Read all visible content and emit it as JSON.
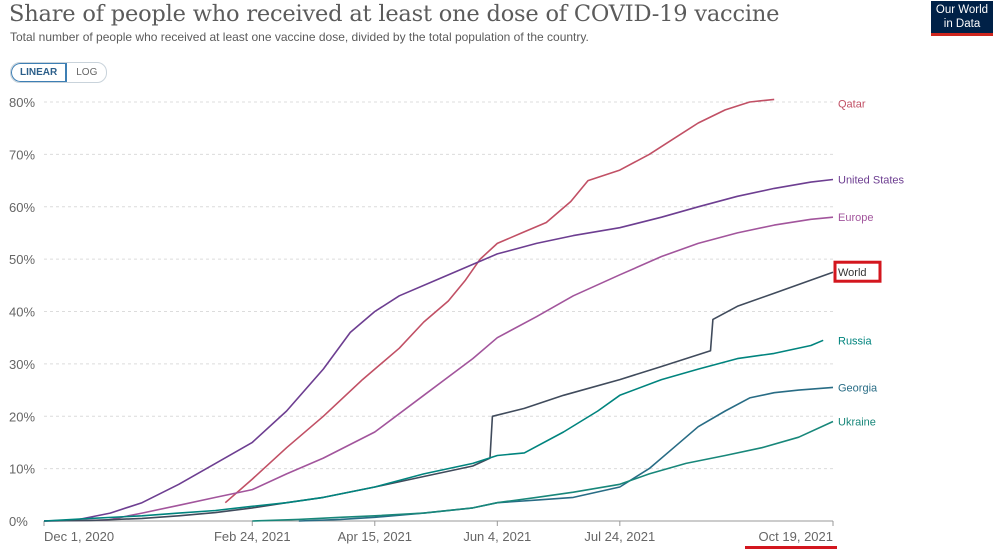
{
  "header": {
    "title": "Share of people who received at least one dose of COVID-19 vaccine",
    "subtitle": "Total number of people who received at least one vaccine dose, divided by the total population of the country.",
    "logo_line1": "Our World",
    "logo_line2": "in Data"
  },
  "scale_toggle": {
    "linear": "LINEAR",
    "log": "LOG",
    "selected": "LINEAR"
  },
  "colors": {
    "Qatar": "#c15065",
    "United States": "#6d3e91",
    "Europe": "#a2559c",
    "World": "#404b5c",
    "Russia": "#00847e",
    "Georgia": "#286c85",
    "Ukraine": "#18877a",
    "highlight": "#d3161e"
  },
  "chart_data": {
    "type": "line",
    "title": "Share of people who received at least one dose of COVID-19 vaccine",
    "subtitle": "Total number of people who received at least one vaccine dose, divided by the total population of the country.",
    "xlabel": "",
    "ylabel": "",
    "x_ticks": [
      "Dec 1, 2020",
      "Feb 24, 2021",
      "Apr 15, 2021",
      "Jun 4, 2021",
      "Jul 24, 2021",
      "Oct 19, 2021"
    ],
    "y_ticks": [
      "0%",
      "10%",
      "20%",
      "30%",
      "40%",
      "50%",
      "60%",
      "70%",
      "80%"
    ],
    "ylim": [
      0,
      80
    ],
    "xlim": [
      "2020-12-01",
      "2021-10-19"
    ],
    "grid": "horizontal-dashed",
    "legend": "inline-right",
    "highlighted_series": "World",
    "series": [
      {
        "name": "Qatar",
        "x": [
          "2021-02-13",
          "2021-02-24",
          "2021-03-10",
          "2021-03-25",
          "2021-04-10",
          "2021-04-25",
          "2021-05-05",
          "2021-05-15",
          "2021-05-22",
          "2021-05-28",
          "2021-06-04",
          "2021-06-14",
          "2021-06-24",
          "2021-07-04",
          "2021-07-11",
          "2021-07-24",
          "2021-08-05",
          "2021-08-15",
          "2021-08-25",
          "2021-09-05",
          "2021-09-15",
          "2021-09-25"
        ],
        "y": [
          3.5,
          8,
          14,
          20,
          27,
          33,
          38,
          42,
          46,
          50,
          53,
          55,
          57,
          61,
          65,
          67,
          70,
          73,
          76,
          78.5,
          80,
          80.5
        ]
      },
      {
        "name": "United States",
        "x": [
          "2020-12-01",
          "2020-12-14",
          "2020-12-28",
          "2021-01-10",
          "2021-01-25",
          "2021-02-09",
          "2021-02-24",
          "2021-03-10",
          "2021-03-25",
          "2021-04-05",
          "2021-04-15",
          "2021-04-25",
          "2021-05-10",
          "2021-05-25",
          "2021-06-04",
          "2021-06-20",
          "2021-07-05",
          "2021-07-24",
          "2021-08-10",
          "2021-08-25",
          "2021-09-10",
          "2021-09-25",
          "2021-10-10",
          "2021-10-19"
        ],
        "y": [
          0,
          0.2,
          1.5,
          3.5,
          7,
          11,
          15,
          21,
          29,
          36,
          40,
          43,
          46,
          49,
          51,
          53,
          54.5,
          56,
          58,
          60,
          62,
          63.5,
          64.7,
          65.2
        ]
      },
      {
        "name": "Europe",
        "x": [
          "2020-12-01",
          "2020-12-27",
          "2021-01-10",
          "2021-01-25",
          "2021-02-09",
          "2021-02-24",
          "2021-03-10",
          "2021-03-25",
          "2021-04-15",
          "2021-05-05",
          "2021-05-25",
          "2021-06-04",
          "2021-06-20",
          "2021-07-05",
          "2021-07-24",
          "2021-08-10",
          "2021-08-25",
          "2021-09-10",
          "2021-09-25",
          "2021-10-10",
          "2021-10-19"
        ],
        "y": [
          0,
          0.2,
          1.5,
          3,
          4.5,
          6,
          9,
          12,
          17,
          24,
          31,
          35,
          39,
          43,
          47,
          50.5,
          53,
          55,
          56.5,
          57.6,
          58
        ]
      },
      {
        "name": "World",
        "x": [
          "2020-12-01",
          "2020-12-20",
          "2021-01-10",
          "2021-01-25",
          "2021-02-09",
          "2021-02-24",
          "2021-03-10",
          "2021-03-25",
          "2021-04-15",
          "2021-05-05",
          "2021-05-25",
          "2021-06-01",
          "2021-06-02",
          "2021-06-15",
          "2021-07-01",
          "2021-07-24",
          "2021-08-10",
          "2021-08-30",
          "2021-08-31",
          "2021-09-10",
          "2021-09-25",
          "2021-10-10",
          "2021-10-19"
        ],
        "y": [
          0,
          0.1,
          0.5,
          1,
          1.6,
          2.5,
          3.5,
          4.5,
          6.5,
          8.5,
          10.5,
          12,
          20,
          21.5,
          24,
          27,
          29.5,
          32.5,
          38.5,
          41,
          43.5,
          46,
          47.5
        ]
      },
      {
        "name": "Russia",
        "x": [
          "2020-12-01",
          "2020-12-20",
          "2021-01-10",
          "2021-01-25",
          "2021-02-09",
          "2021-02-24",
          "2021-03-10",
          "2021-03-25",
          "2021-04-15",
          "2021-05-05",
          "2021-05-25",
          "2021-06-04",
          "2021-06-15",
          "2021-07-01",
          "2021-07-15",
          "2021-07-24",
          "2021-08-10",
          "2021-08-25",
          "2021-09-10",
          "2021-09-25",
          "2021-10-10",
          "2021-10-15"
        ],
        "y": [
          0,
          0.5,
          1,
          1.5,
          2,
          2.8,
          3.5,
          4.5,
          6.5,
          9,
          11,
          12.5,
          13,
          17,
          21,
          24,
          27,
          29,
          31,
          32,
          33.5,
          34.5
        ]
      },
      {
        "name": "Georgia",
        "x": [
          "2021-03-15",
          "2021-04-01",
          "2021-04-15",
          "2021-05-05",
          "2021-05-25",
          "2021-06-04",
          "2021-06-20",
          "2021-07-05",
          "2021-07-24",
          "2021-08-05",
          "2021-08-15",
          "2021-08-25",
          "2021-09-05",
          "2021-09-15",
          "2021-09-25",
          "2021-10-05",
          "2021-10-19"
        ],
        "y": [
          0,
          0.3,
          0.7,
          1.5,
          2.5,
          3.5,
          4,
          4.5,
          6.5,
          10,
          14,
          18,
          21,
          23.5,
          24.5,
          25,
          25.5
        ]
      },
      {
        "name": "Ukraine",
        "x": [
          "2021-02-24",
          "2021-03-15",
          "2021-04-01",
          "2021-04-15",
          "2021-05-05",
          "2021-05-25",
          "2021-06-04",
          "2021-06-20",
          "2021-07-05",
          "2021-07-24",
          "2021-08-05",
          "2021-08-20",
          "2021-09-05",
          "2021-09-20",
          "2021-10-05",
          "2021-10-19"
        ],
        "y": [
          0,
          0.3,
          0.7,
          1,
          1.5,
          2.5,
          3.5,
          4.5,
          5.5,
          7,
          9,
          11,
          12.5,
          14,
          16,
          19
        ]
      }
    ]
  }
}
